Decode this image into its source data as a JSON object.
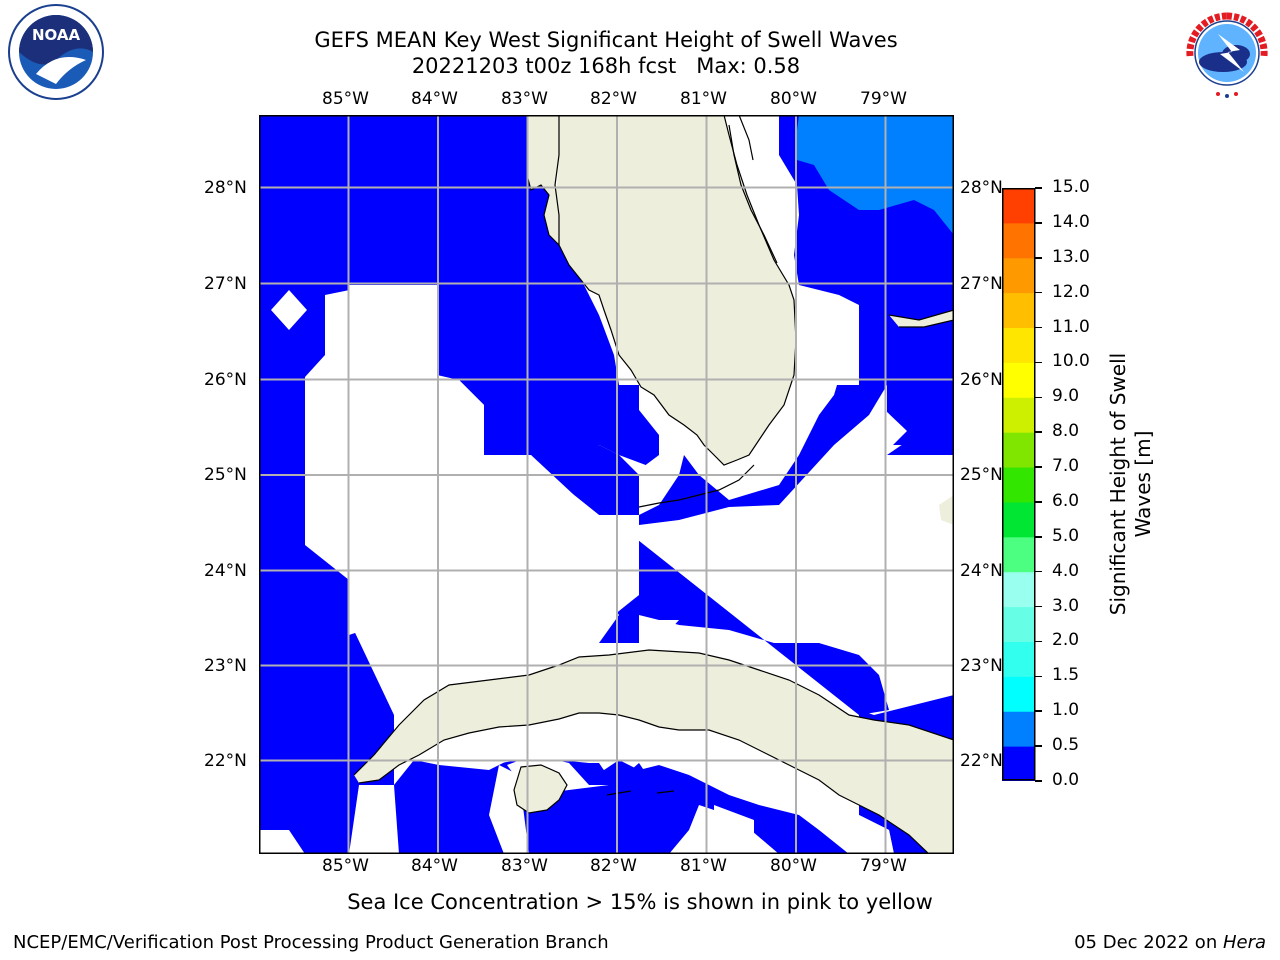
{
  "header": {
    "title_line1": "GEFS MEAN Key West Significant Height of Swell Waves",
    "title_line2": "20221203 t00z 168h fcst   Max: 0.58"
  },
  "logos": {
    "left": {
      "name": "noaa-logo",
      "text": "NOAA",
      "ring_text": "NATIONAL OCEANIC AND ATMOSPHERIC ADMINISTRATION · U.S. DEPARTMENT OF COMMERCE"
    },
    "right": {
      "name": "nws-logo",
      "ring_text": "NATIONAL WEATHER SERVICE"
    }
  },
  "map": {
    "lon_labels": [
      "85°W",
      "84°W",
      "83°W",
      "82°W",
      "81°W",
      "80°W",
      "79°W"
    ],
    "lat_labels": [
      "28°N",
      "27°N",
      "26°N",
      "25°N",
      "24°N",
      "23°N",
      "22°N"
    ],
    "colors": {
      "swell": "#0000ff",
      "swell_high": "#0080ff",
      "land": "#eeeedc",
      "grid": "#b0b0b0",
      "masked": "#ffffff"
    }
  },
  "colorbar": {
    "label_line1": "Significant Height of Swell",
    "label_line2": "Waves [m]",
    "ticks": [
      "0.0",
      "0.5",
      "1.0",
      "1.5",
      "2.0",
      "3.0",
      "4.0",
      "5.0",
      "6.0",
      "7.0",
      "8.0",
      "9.0",
      "10.0",
      "11.0",
      "12.0",
      "13.0",
      "14.0",
      "15.0"
    ],
    "colors": [
      "#0000ff",
      "#0080ff",
      "#00ffff",
      "#33ffee",
      "#66ffe6",
      "#99ffee",
      "#4cff80",
      "#00e633",
      "#33e600",
      "#80e600",
      "#ccf000",
      "#ffff00",
      "#ffe600",
      "#ffbf00",
      "#ff9900",
      "#ff7300",
      "#ff4000",
      "#ff0000"
    ]
  },
  "note": "Sea Ice Concentration > 15% is shown in pink to yellow",
  "footer": {
    "left": "NCEP/EMC/Verification Post Processing Product Generation Branch",
    "right_prefix": "05 Dec 2022 on ",
    "right_host": "Hera"
  }
}
